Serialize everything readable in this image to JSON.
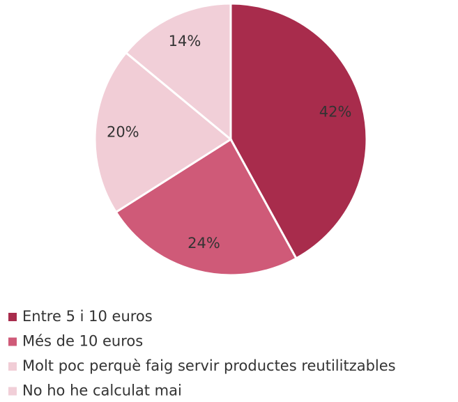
{
  "chart_data": {
    "type": "pie",
    "categories": [
      "Entre 5 i 10 euros",
      "Més de 10 euros",
      "Molt poc perquè faig servir productes reutilitzables",
      "No ho he calculat mai"
    ],
    "values": [
      42,
      24,
      20,
      14
    ],
    "value_labels": [
      "42%",
      "24%",
      "20%",
      "14%"
    ],
    "colors": [
      "#a82c4c",
      "#cf5a78",
      "#f1cdd6",
      "#f1cfd8"
    ],
    "legend": "bottom"
  }
}
